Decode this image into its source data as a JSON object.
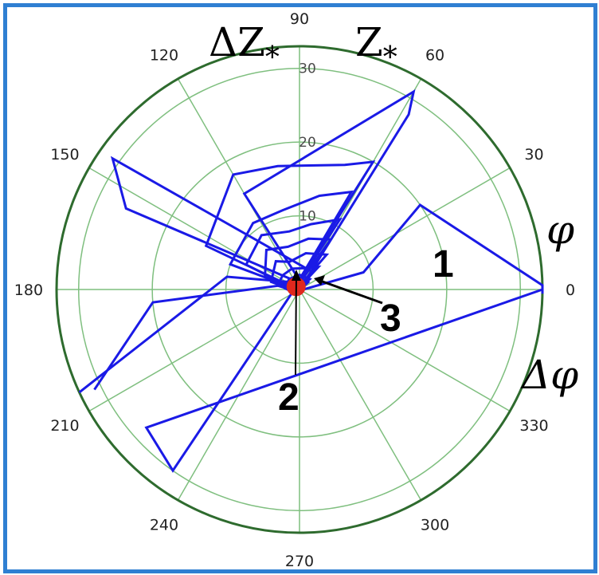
{
  "chart_data": {
    "type": "polar-line",
    "angle_ticks": [
      "0",
      "30",
      "60",
      "90",
      "120",
      "150",
      "180",
      "210",
      "240",
      "270",
      "300",
      "330"
    ],
    "radial_ticks": [
      "10",
      "20",
      "30"
    ],
    "rlim": [
      0,
      33
    ],
    "grid": true,
    "colors": {
      "series": "#1a1ae6",
      "grid": "#7fbf7f",
      "outer_circle": "#2e6b2e",
      "marker": "#e0281e"
    },
    "axis_titles": {
      "top_left": {
        "main": "ΔZ",
        "sub": "*"
      },
      "top_right": {
        "main": "Z",
        "sub": "*"
      },
      "right_upper": "φ",
      "right_lower": "Δφ"
    },
    "callouts": [
      "1",
      "2",
      "3"
    ],
    "series": [
      {
        "points": [
          [
            0.5,
            0
          ],
          [
            9,
            15
          ],
          [
            20,
            35
          ],
          [
            33,
            1
          ],
          [
            33,
            -1
          ]
        ]
      },
      {
        "points": [
          [
            1,
            60
          ],
          [
            10,
            170
          ],
          [
            33,
            205
          ]
        ]
      },
      {
        "points": [
          [
            1,
            70
          ],
          [
            20,
            185
          ],
          [
            31,
            206
          ]
        ]
      },
      {
        "points": [
          [
            1,
            80
          ],
          [
            15,
            120
          ],
          [
            31,
            60
          ],
          [
            28,
            58
          ],
          [
            1,
            55
          ]
        ]
      },
      {
        "points": [
          [
            1,
            100
          ],
          [
            26,
            155
          ],
          [
            31,
            145
          ],
          [
            3,
            50
          ]
        ]
      },
      {
        "points": [
          [
            1,
            200
          ],
          [
            30,
            235
          ],
          [
            28,
            222
          ],
          [
            33,
            0
          ]
        ]
      },
      {
        "points": [
          [
            1,
            190
          ],
          [
            20,
            60
          ],
          [
            18,
            70
          ],
          [
            17,
            100
          ],
          [
            18,
            120
          ],
          [
            14,
            155
          ],
          [
            1,
            160
          ]
        ]
      },
      {
        "points": [
          [
            1,
            195
          ],
          [
            15,
            62
          ],
          [
            13,
            78
          ],
          [
            11,
            102
          ],
          [
            11,
            125
          ],
          [
            10,
            160
          ],
          [
            1,
            165
          ]
        ]
      },
      {
        "points": [
          [
            1,
            200
          ],
          [
            11,
            60
          ],
          [
            9,
            80
          ],
          [
            8,
            100
          ],
          [
            9,
            125
          ],
          [
            8,
            155
          ],
          [
            1,
            170
          ]
        ]
      },
      {
        "points": [
          [
            1,
            205
          ],
          [
            8,
            58
          ],
          [
            7,
            80
          ],
          [
            6,
            105
          ],
          [
            7,
            130
          ],
          [
            5,
            160
          ],
          [
            1,
            175
          ]
        ]
      },
      {
        "points": [
          [
            1,
            210
          ],
          [
            6,
            52
          ],
          [
            5,
            80
          ],
          [
            4,
            110
          ],
          [
            5,
            130
          ],
          [
            4,
            165
          ],
          [
            1,
            180
          ]
        ]
      },
      {
        "points": [
          [
            1,
            215
          ],
          [
            4,
            50
          ],
          [
            3,
            75
          ],
          [
            3,
            110
          ],
          [
            3,
            140
          ],
          [
            3,
            170
          ],
          [
            1,
            185
          ]
        ]
      },
      {
        "points": [
          [
            1,
            220
          ],
          [
            2,
            45
          ],
          [
            2,
            90
          ],
          [
            2,
            135
          ],
          [
            2,
            175
          ],
          [
            1,
            200
          ]
        ]
      },
      {
        "points": [
          [
            0.5,
            230
          ],
          [
            1.5,
            40
          ],
          [
            1.5,
            110
          ],
          [
            1.2,
            160
          ],
          [
            0.5,
            210
          ]
        ]
      }
    ],
    "marker": {
      "r": 0.6,
      "theta": 140
    }
  }
}
